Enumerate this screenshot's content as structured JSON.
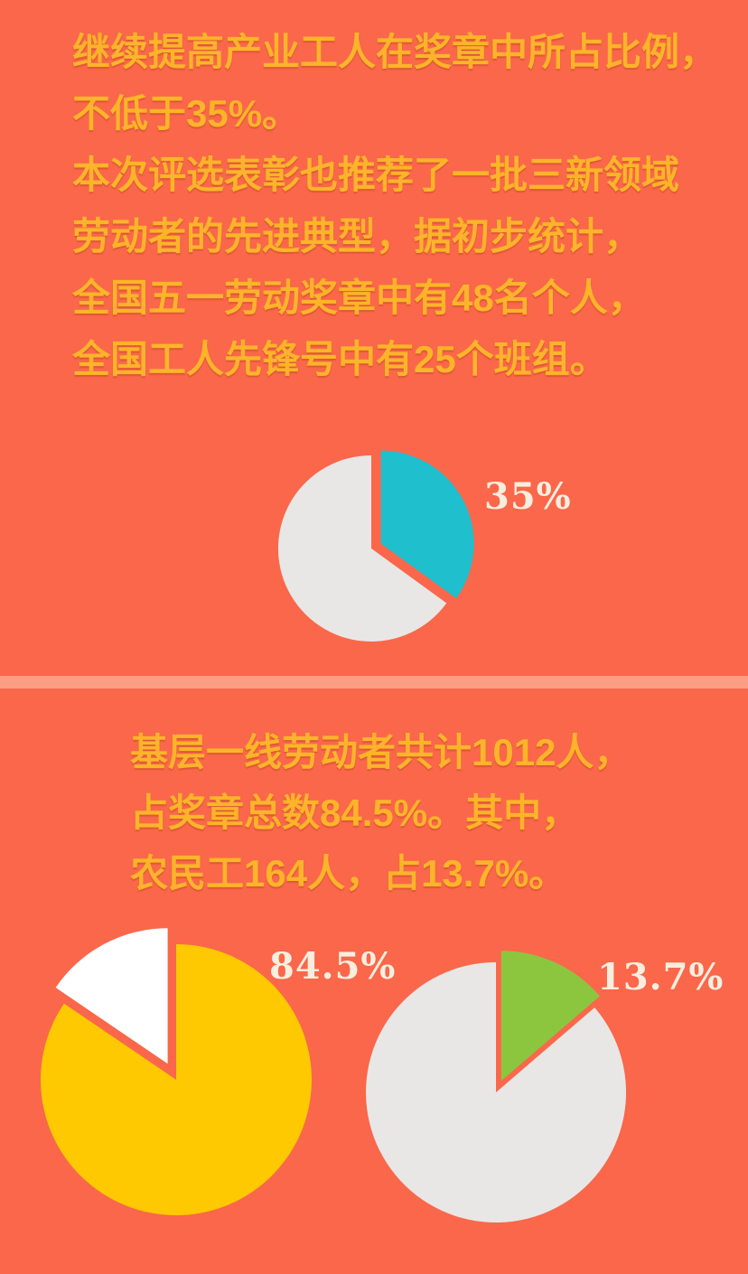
{
  "canvas": {
    "background_color": "#FA674A",
    "divider_color": "#FB9E84",
    "text_color": "#FCB42A",
    "label_color": "#F7EEDF"
  },
  "top_section": {
    "lines": [
      "继续提高产业工人在奖章中所占比例，",
      "不低于35%。",
      "本次评选表彰也推荐了一批三新领域",
      "劳动者的先进典型，据初步统计，",
      "全国五一劳动奖章中有48名个人，",
      "全国工人先锋号中有25个班组。"
    ]
  },
  "bottom_section": {
    "lines": [
      "基层一线劳动者共计1012人，",
      "占奖章总数84.5%。其中，",
      "农民工164人，占13.7%。"
    ]
  },
  "chart_data": [
    {
      "type": "pie",
      "id": "pie-35",
      "label": "35%",
      "label_position": "right",
      "start_angle": "top",
      "direction": "clockwise",
      "slices": [
        {
          "name": "highlighted",
          "value": 35,
          "color": "#1FBFCE",
          "exploded": true
        },
        {
          "name": "remainder",
          "value": 65,
          "color": "#E8E7E5",
          "exploded": false
        }
      ]
    },
    {
      "type": "pie",
      "id": "pie-845",
      "label": "84.5%",
      "label_position": "top-right",
      "start_angle": "top",
      "direction": "clockwise",
      "slices": [
        {
          "name": "highlighted",
          "value": 84.5,
          "color": "#FEC901",
          "exploded": false
        },
        {
          "name": "remainder",
          "value": 15.5,
          "color": "#FFFFFF",
          "exploded": true
        }
      ]
    },
    {
      "type": "pie",
      "id": "pie-137",
      "label": "13.7%",
      "label_position": "right",
      "start_angle": "top",
      "direction": "clockwise",
      "slices": [
        {
          "name": "highlighted",
          "value": 13.7,
          "color": "#8CC63F",
          "exploded": true
        },
        {
          "name": "remainder",
          "value": 86.3,
          "color": "#E8E7E5",
          "exploded": false
        }
      ]
    }
  ]
}
